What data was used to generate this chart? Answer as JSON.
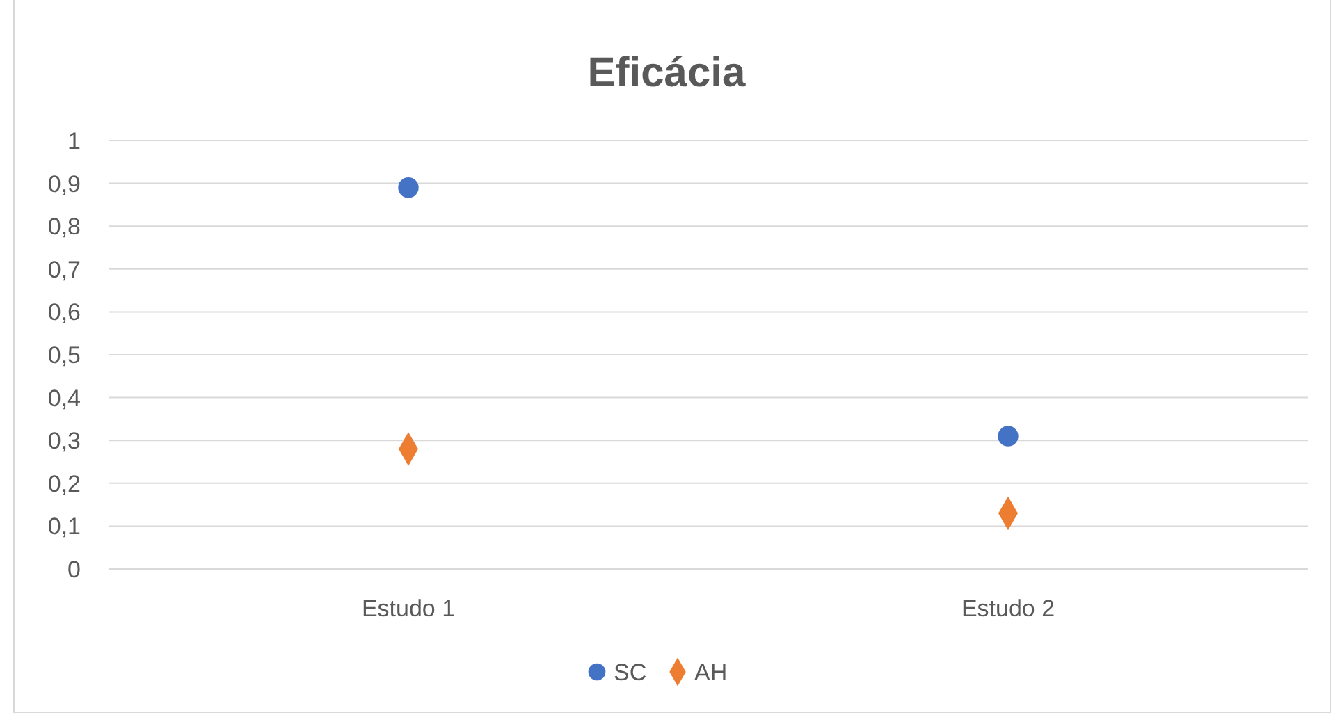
{
  "chart_data": {
    "type": "scatter",
    "title": "Eficácia",
    "categories": [
      "Estudo 1",
      "Estudo 2"
    ],
    "series": [
      {
        "name": "SC",
        "color": "#4472c4",
        "marker": "circle",
        "values": [
          0.89,
          0.31
        ]
      },
      {
        "name": "AH",
        "color": "#ed7d31",
        "marker": "diamond",
        "values": [
          0.28,
          0.13
        ]
      }
    ],
    "ylim": [
      0,
      1
    ],
    "yticks": [
      0,
      {
        "value": 0.1,
        "label": "0,1"
      },
      {
        "value": 0.2,
        "label": "0,2"
      },
      {
        "value": 0.3,
        "label": "0,3"
      },
      {
        "value": 0.4,
        "label": "0,4"
      },
      {
        "value": 0.5,
        "label": "0,5"
      },
      {
        "value": 0.6,
        "label": "0,6"
      },
      {
        "value": 0.7,
        "label": "0,7"
      },
      {
        "value": 0.8,
        "label": "0,8"
      },
      {
        "value": 0.9,
        "label": "0,9"
      },
      1
    ],
    "grid": "y",
    "legend": "bottom"
  }
}
